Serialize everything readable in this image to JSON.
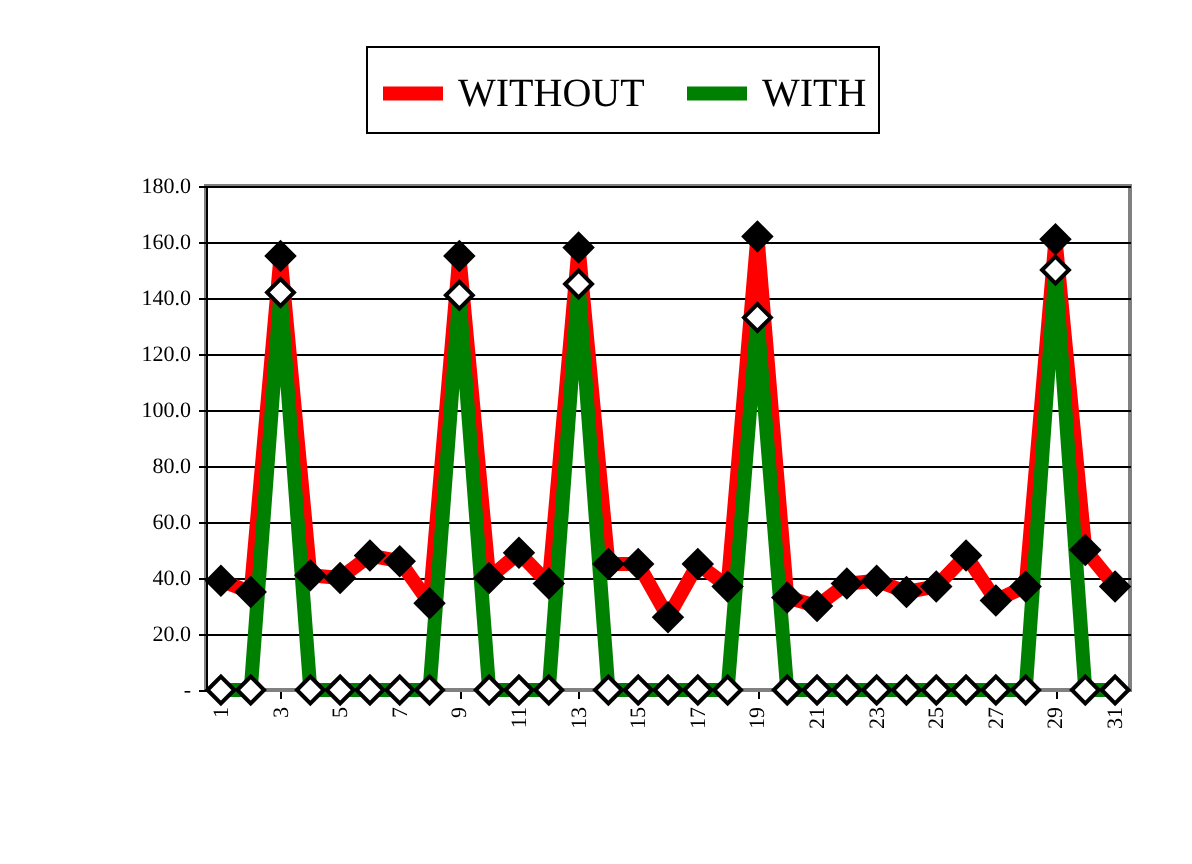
{
  "chart_data": {
    "type": "line",
    "categories": [
      "1",
      null,
      "3",
      null,
      "5",
      null,
      "7",
      null,
      "9",
      null,
      "11",
      null,
      "13",
      null,
      "15",
      null,
      "17",
      null,
      "19",
      null,
      "21",
      null,
      "23",
      null,
      "25",
      null,
      "27",
      null,
      "29",
      null,
      "31"
    ],
    "series": [
      {
        "name": "WITHOUT",
        "color": "#ff0000",
        "values": [
          39,
          35,
          155,
          41,
          40,
          48,
          46,
          31,
          155,
          40,
          49,
          38,
          158,
          45,
          45,
          26,
          45,
          37,
          162,
          33,
          30,
          38,
          39,
          35,
          37,
          48,
          32,
          37,
          161,
          50,
          37
        ]
      },
      {
        "name": "WITH",
        "color": "#008000",
        "values": [
          0,
          0,
          142,
          0,
          0,
          0,
          0,
          0,
          141,
          0,
          0,
          0,
          145,
          0,
          0,
          0,
          0,
          0,
          133,
          0,
          0,
          0,
          0,
          0,
          0,
          0,
          0,
          0,
          150,
          0,
          0
        ]
      }
    ],
    "ylim": [
      0,
      180
    ],
    "yticks": [
      {
        "value": 0,
        "label": "-"
      },
      {
        "value": 20,
        "label": "20.0"
      },
      {
        "value": 40,
        "label": "40.0"
      },
      {
        "value": 60,
        "label": "60.0"
      },
      {
        "value": 80,
        "label": "80.0"
      },
      {
        "value": 100,
        "label": "100.0"
      },
      {
        "value": 120,
        "label": "120.0"
      },
      {
        "value": 140,
        "label": "140.0"
      },
      {
        "value": 160,
        "label": "160.0"
      },
      {
        "value": 180,
        "label": "180.0"
      }
    ],
    "grid": "y",
    "legend": "top",
    "marker": "diamond",
    "line_style": "solid"
  }
}
